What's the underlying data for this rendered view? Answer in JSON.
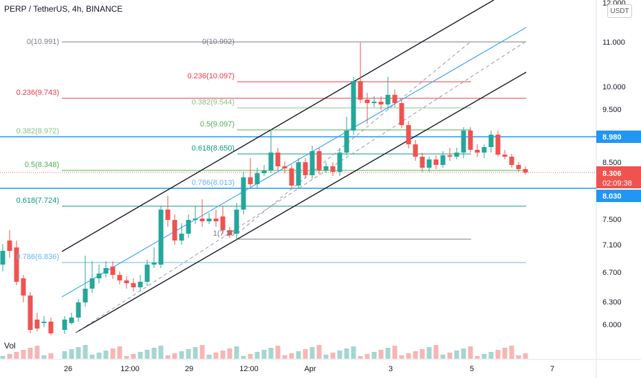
{
  "header": {
    "title": "PERP / TetherUS, 4h, BINANCE",
    "currency_button": "USDT"
  },
  "volume_label": "Vol",
  "price_axis": {
    "ticks": [
      "12.000",
      "11.000",
      "10.000",
      "9.500",
      "8.500",
      "7.500",
      "7.100",
      "6.700",
      "6.300",
      "6.000"
    ],
    "badges": [
      {
        "label": "8.980",
        "color": "#2196f3"
      },
      {
        "label": "8.306",
        "color": "#ef5350"
      },
      {
        "label": "02:09:38",
        "color": "#ef5350"
      },
      {
        "label": "8.030",
        "color": "#2196f3"
      }
    ]
  },
  "time_axis": {
    "ticks": [
      "26",
      "12:00",
      "29",
      "12:00",
      "Apr",
      "3",
      "5",
      "7"
    ]
  },
  "fib_levels": {
    "left": [
      {
        "label": "0(10.991)",
        "color": "#787b86"
      },
      {
        "label": "0.236(9.743)",
        "color": "#f23645"
      },
      {
        "label": "0.382(8.972)",
        "color": "#81c784"
      },
      {
        "label": "0.5(8.348)",
        "color": "#4caf50"
      },
      {
        "label": "0.618(7.724)",
        "color": "#089981"
      },
      {
        "label": "0.786(6.836)",
        "color": "#64b5f6"
      }
    ],
    "right": [
      {
        "label": "0(10.992)",
        "color": "#787b86"
      },
      {
        "label": "0.236(10.097)",
        "color": "#f23645"
      },
      {
        "label": "0.382(9.544)",
        "color": "#81c784"
      },
      {
        "label": "0.5(9.097)",
        "color": "#4caf50"
      },
      {
        "label": "0.618(8.650)",
        "color": "#089981"
      },
      {
        "label": "0.786(8.013)",
        "color": "#64b5f6"
      },
      {
        "label": "1(7.20",
        "color": "#787b86"
      }
    ]
  },
  "colors": {
    "up": "#26a69a",
    "down": "#ef5350",
    "grid": "#f0f3fa"
  }
}
